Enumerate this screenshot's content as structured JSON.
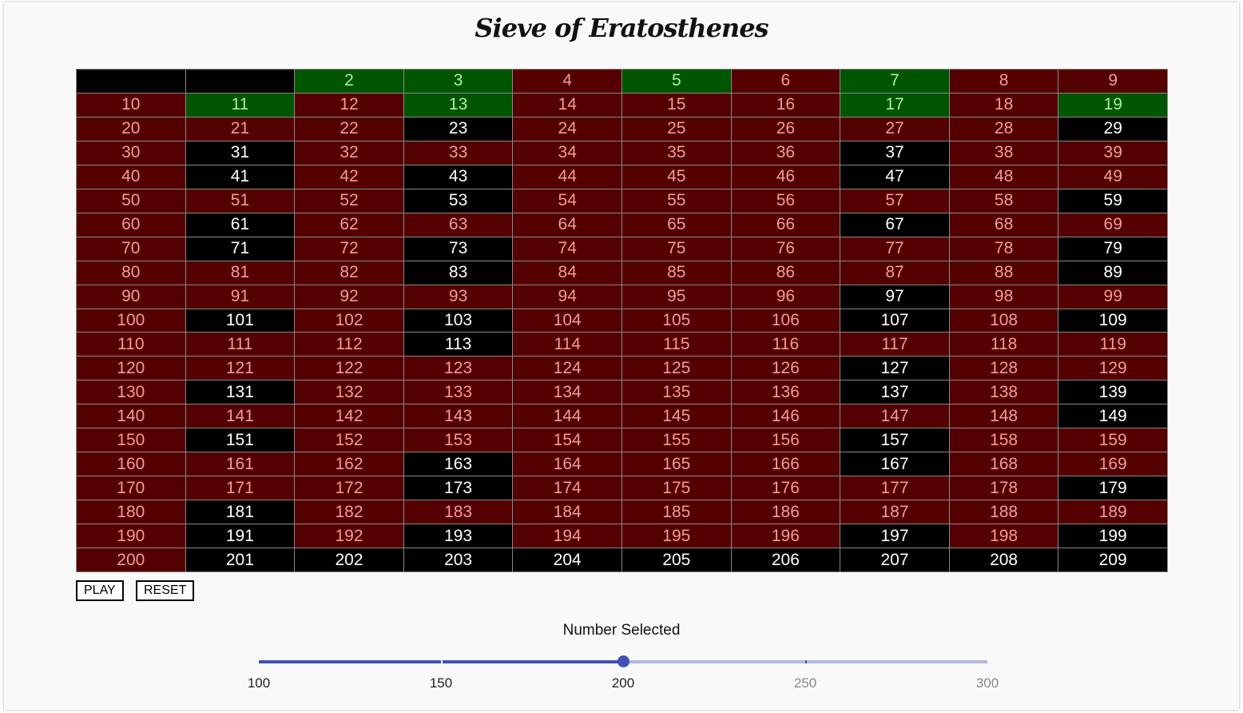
{
  "title": "Sieve of Eratosthenes",
  "grid": {
    "start": 0,
    "end": 209,
    "columns": 10,
    "hidden_labels": [
      0,
      1
    ],
    "green": [
      2,
      3,
      5,
      7,
      11,
      13,
      17,
      19
    ],
    "black": [
      0,
      1,
      23,
      29,
      31,
      37,
      41,
      43,
      47,
      53,
      59,
      61,
      67,
      71,
      73,
      79,
      83,
      89,
      97,
      101,
      103,
      107,
      109,
      113,
      127,
      131,
      137,
      139,
      149,
      151,
      157,
      163,
      167,
      173,
      179,
      181,
      191,
      193,
      197,
      199,
      201,
      202,
      203,
      204,
      205,
      206,
      207,
      208,
      209
    ],
    "colors": {
      "red": "#550000",
      "green": "#005500",
      "black": "#000000"
    }
  },
  "buttons": {
    "play": "PLAY",
    "reset": "RESET"
  },
  "slider": {
    "label": "Number Selected",
    "min": 100,
    "max": 300,
    "value": 200,
    "marks": [
      "100",
      "150",
      "200",
      "250",
      "300"
    ],
    "color": "#3f51b5"
  }
}
